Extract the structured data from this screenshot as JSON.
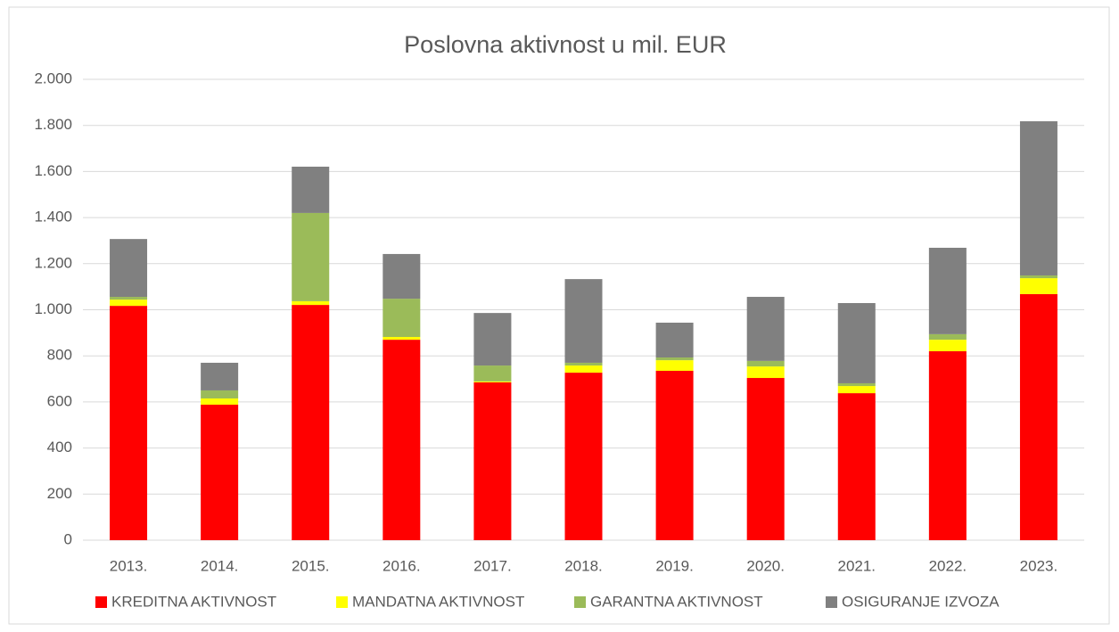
{
  "chart_data": {
    "type": "stacked_bar",
    "title": "Poslovna aktivnost u mil. EUR",
    "categories": [
      "2013.",
      "2014.",
      "2015.",
      "2016.",
      "2017.",
      "2018.",
      "2019.",
      "2020.",
      "2021.",
      "2022.",
      "2023."
    ],
    "series": [
      {
        "name": "KREDITNA AKTIVNOST",
        "color": "#ff0000",
        "values": [
          1017,
          588,
          1021,
          870,
          685,
          727,
          735,
          704,
          638,
          820,
          1068
        ]
      },
      {
        "name": "MANDATNA AKTIVNOST",
        "color": "#ffff00",
        "values": [
          27,
          27,
          16,
          12,
          4,
          31,
          46,
          50,
          31,
          50,
          69
        ]
      },
      {
        "name": "GARANTNA AKTIVNOST",
        "color": "#9bbb59",
        "values": [
          12,
          35,
          383,
          166,
          69,
          12,
          12,
          24,
          12,
          24,
          12
        ]
      },
      {
        "name": "OSIGURANJE IZVOZA",
        "color": "#808080",
        "values": [
          251,
          120,
          201,
          194,
          228,
          363,
          151,
          278,
          348,
          375,
          669
        ]
      }
    ],
    "ylim": [
      0,
      2000
    ],
    "yticks": [
      0,
      200,
      400,
      600,
      800,
      {
        "value": 1000,
        "label": "1.000"
      },
      {
        "value": 1200,
        "label": "1.200"
      },
      {
        "value": 1400,
        "label": "1.400"
      },
      {
        "value": 1600,
        "label": "1.600"
      },
      {
        "value": 1800,
        "label": "1.800"
      },
      {
        "value": 2000,
        "label": "2.000"
      }
    ],
    "grid": true,
    "legend": "bottom"
  }
}
